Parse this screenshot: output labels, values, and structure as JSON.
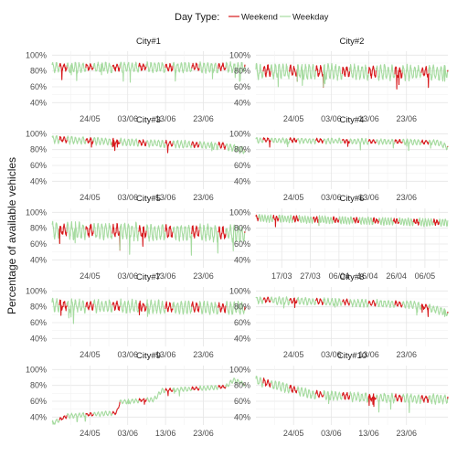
{
  "legend": {
    "title": "Day Type:",
    "entries": [
      {
        "name": "Weekend",
        "color": "#d7191c"
      },
      {
        "name": "Weekday",
        "color": "#a6dba0"
      }
    ]
  },
  "ylabel": "Percentage of available vehicles",
  "chart_data": [
    {
      "type": "line",
      "title": "City#1",
      "ylim": [
        30,
        105
      ],
      "yticks": [
        "100%",
        "80%",
        "60%",
        "40%"
      ],
      "xticks": [
        "24/05",
        "03/06",
        "13/06",
        "23/06"
      ],
      "x_range": [
        "2015-05-14",
        "2015-07-04"
      ],
      "level": [
        86,
        86
      ],
      "amplitude": 11,
      "points": [
        [
          "2015-05-14",
          86
        ],
        [
          "2015-07-04",
          86
        ]
      ]
    },
    {
      "type": "line",
      "title": "City#2",
      "ylim": [
        30,
        105
      ],
      "yticks": [
        "100%",
        "80%",
        "60%",
        "40%"
      ],
      "xticks": [
        "24/05",
        "03/06",
        "13/06",
        "23/06"
      ],
      "x_range": [
        "2015-05-14",
        "2015-07-04"
      ],
      "level": [
        82,
        80
      ],
      "amplitude": 16,
      "points": [
        [
          "2015-05-14",
          82
        ],
        [
          "2015-07-04",
          80
        ]
      ]
    },
    {
      "type": "line",
      "title": "City#3",
      "ylim": [
        30,
        105
      ],
      "yticks": [
        "100%",
        "80%",
        "60%",
        "40%"
      ],
      "xticks": [
        "24/05",
        "03/06",
        "13/06",
        "23/06"
      ],
      "x_range": [
        "2015-05-14",
        "2015-07-04"
      ],
      "level": [
        92,
        86
      ],
      "amplitude": 8,
      "points": [
        [
          "2015-05-14",
          94
        ],
        [
          "2015-06-28",
          86
        ],
        [
          "2015-07-04",
          80
        ]
      ]
    },
    {
      "type": "line",
      "title": "City#4",
      "ylim": [
        30,
        105
      ],
      "yticks": [
        "100%",
        "80%",
        "60%",
        "40%"
      ],
      "xticks": [
        "24/05",
        "03/06",
        "13/06",
        "23/06"
      ],
      "x_range": [
        "2015-05-14",
        "2015-07-04"
      ],
      "level": [
        92,
        90
      ],
      "amplitude": 6,
      "points": [
        [
          "2015-05-14",
          93
        ],
        [
          "2015-07-01",
          90
        ],
        [
          "2015-07-04",
          84
        ]
      ]
    },
    {
      "type": "line",
      "title": "City#5",
      "ylim": [
        30,
        105
      ],
      "yticks": [
        "100%",
        "80%",
        "60%",
        "40%"
      ],
      "xticks": [
        "24/05",
        "03/06",
        "13/06",
        "23/06"
      ],
      "x_range": [
        "2015-05-14",
        "2015-07-04"
      ],
      "level": [
        80,
        80
      ],
      "amplitude": 18,
      "points": [
        [
          "2015-05-14",
          80
        ],
        [
          "2015-07-04",
          76
        ]
      ]
    },
    {
      "type": "line",
      "title": "City#6",
      "ylim": [
        30,
        105
      ],
      "yticks": [
        "100%",
        "80%",
        "60%",
        "40%"
      ],
      "xticks": [
        "17/03",
        "27/03",
        "06/04",
        "16/04",
        "26/04",
        "06/05"
      ],
      "x_range": [
        "2015-03-08",
        "2015-05-14"
      ],
      "level": [
        92,
        88
      ],
      "amplitude": 8,
      "points": [
        [
          "2015-03-08",
          94
        ],
        [
          "2015-05-14",
          88
        ]
      ]
    },
    {
      "type": "line",
      "title": "City#7",
      "ylim": [
        30,
        105
      ],
      "yticks": [
        "100%",
        "80%",
        "60%",
        "40%"
      ],
      "xticks": [
        "24/05",
        "03/06",
        "13/06",
        "23/06"
      ],
      "x_range": [
        "2015-05-14",
        "2015-07-04"
      ],
      "level": [
        84,
        84
      ],
      "amplitude": 14,
      "points": [
        [
          "2015-05-14",
          84
        ],
        [
          "2015-07-04",
          80
        ]
      ]
    },
    {
      "type": "line",
      "title": "City#8",
      "ylim": [
        30,
        105
      ],
      "yticks": [
        "100%",
        "80%",
        "60%",
        "40%"
      ],
      "xticks": [
        "24/05",
        "03/06",
        "13/06",
        "23/06"
      ],
      "x_range": [
        "2015-05-14",
        "2015-07-04"
      ],
      "level": [
        88,
        80
      ],
      "amplitude": 8,
      "points": [
        [
          "2015-05-14",
          90
        ],
        [
          "2015-06-25",
          84
        ],
        [
          "2015-07-04",
          74
        ]
      ]
    },
    {
      "type": "line",
      "title": "City#9",
      "ylim": [
        30,
        105
      ],
      "yticks": [
        "100%",
        "80%",
        "60%",
        "40%"
      ],
      "xticks": [
        "24/05",
        "03/06",
        "13/06",
        "23/06"
      ],
      "x_range": [
        "2015-05-14",
        "2015-07-04"
      ],
      "level": [
        35,
        85
      ],
      "amplitude": 5,
      "points": [
        [
          "2015-05-14",
          33
        ],
        [
          "2015-05-18",
          42
        ],
        [
          "2015-05-31",
          46
        ],
        [
          "2015-06-01",
          60
        ],
        [
          "2015-06-10",
          63
        ],
        [
          "2015-06-12",
          74
        ],
        [
          "2015-06-29",
          79
        ],
        [
          "2015-07-01",
          88
        ],
        [
          "2015-07-04",
          82
        ]
      ]
    },
    {
      "type": "line",
      "title": "City#10",
      "ylim": [
        30,
        105
      ],
      "yticks": [
        "100%",
        "80%",
        "60%",
        "40%"
      ],
      "xticks": [
        "24/05",
        "03/06",
        "13/06",
        "23/06"
      ],
      "x_range": [
        "2015-05-14",
        "2015-07-04"
      ],
      "level": [
        86,
        64
      ],
      "amplitude": 10,
      "points": [
        [
          "2015-05-14",
          88
        ],
        [
          "2015-05-29",
          70
        ],
        [
          "2015-06-13",
          66
        ],
        [
          "2015-07-04",
          64
        ]
      ]
    }
  ]
}
